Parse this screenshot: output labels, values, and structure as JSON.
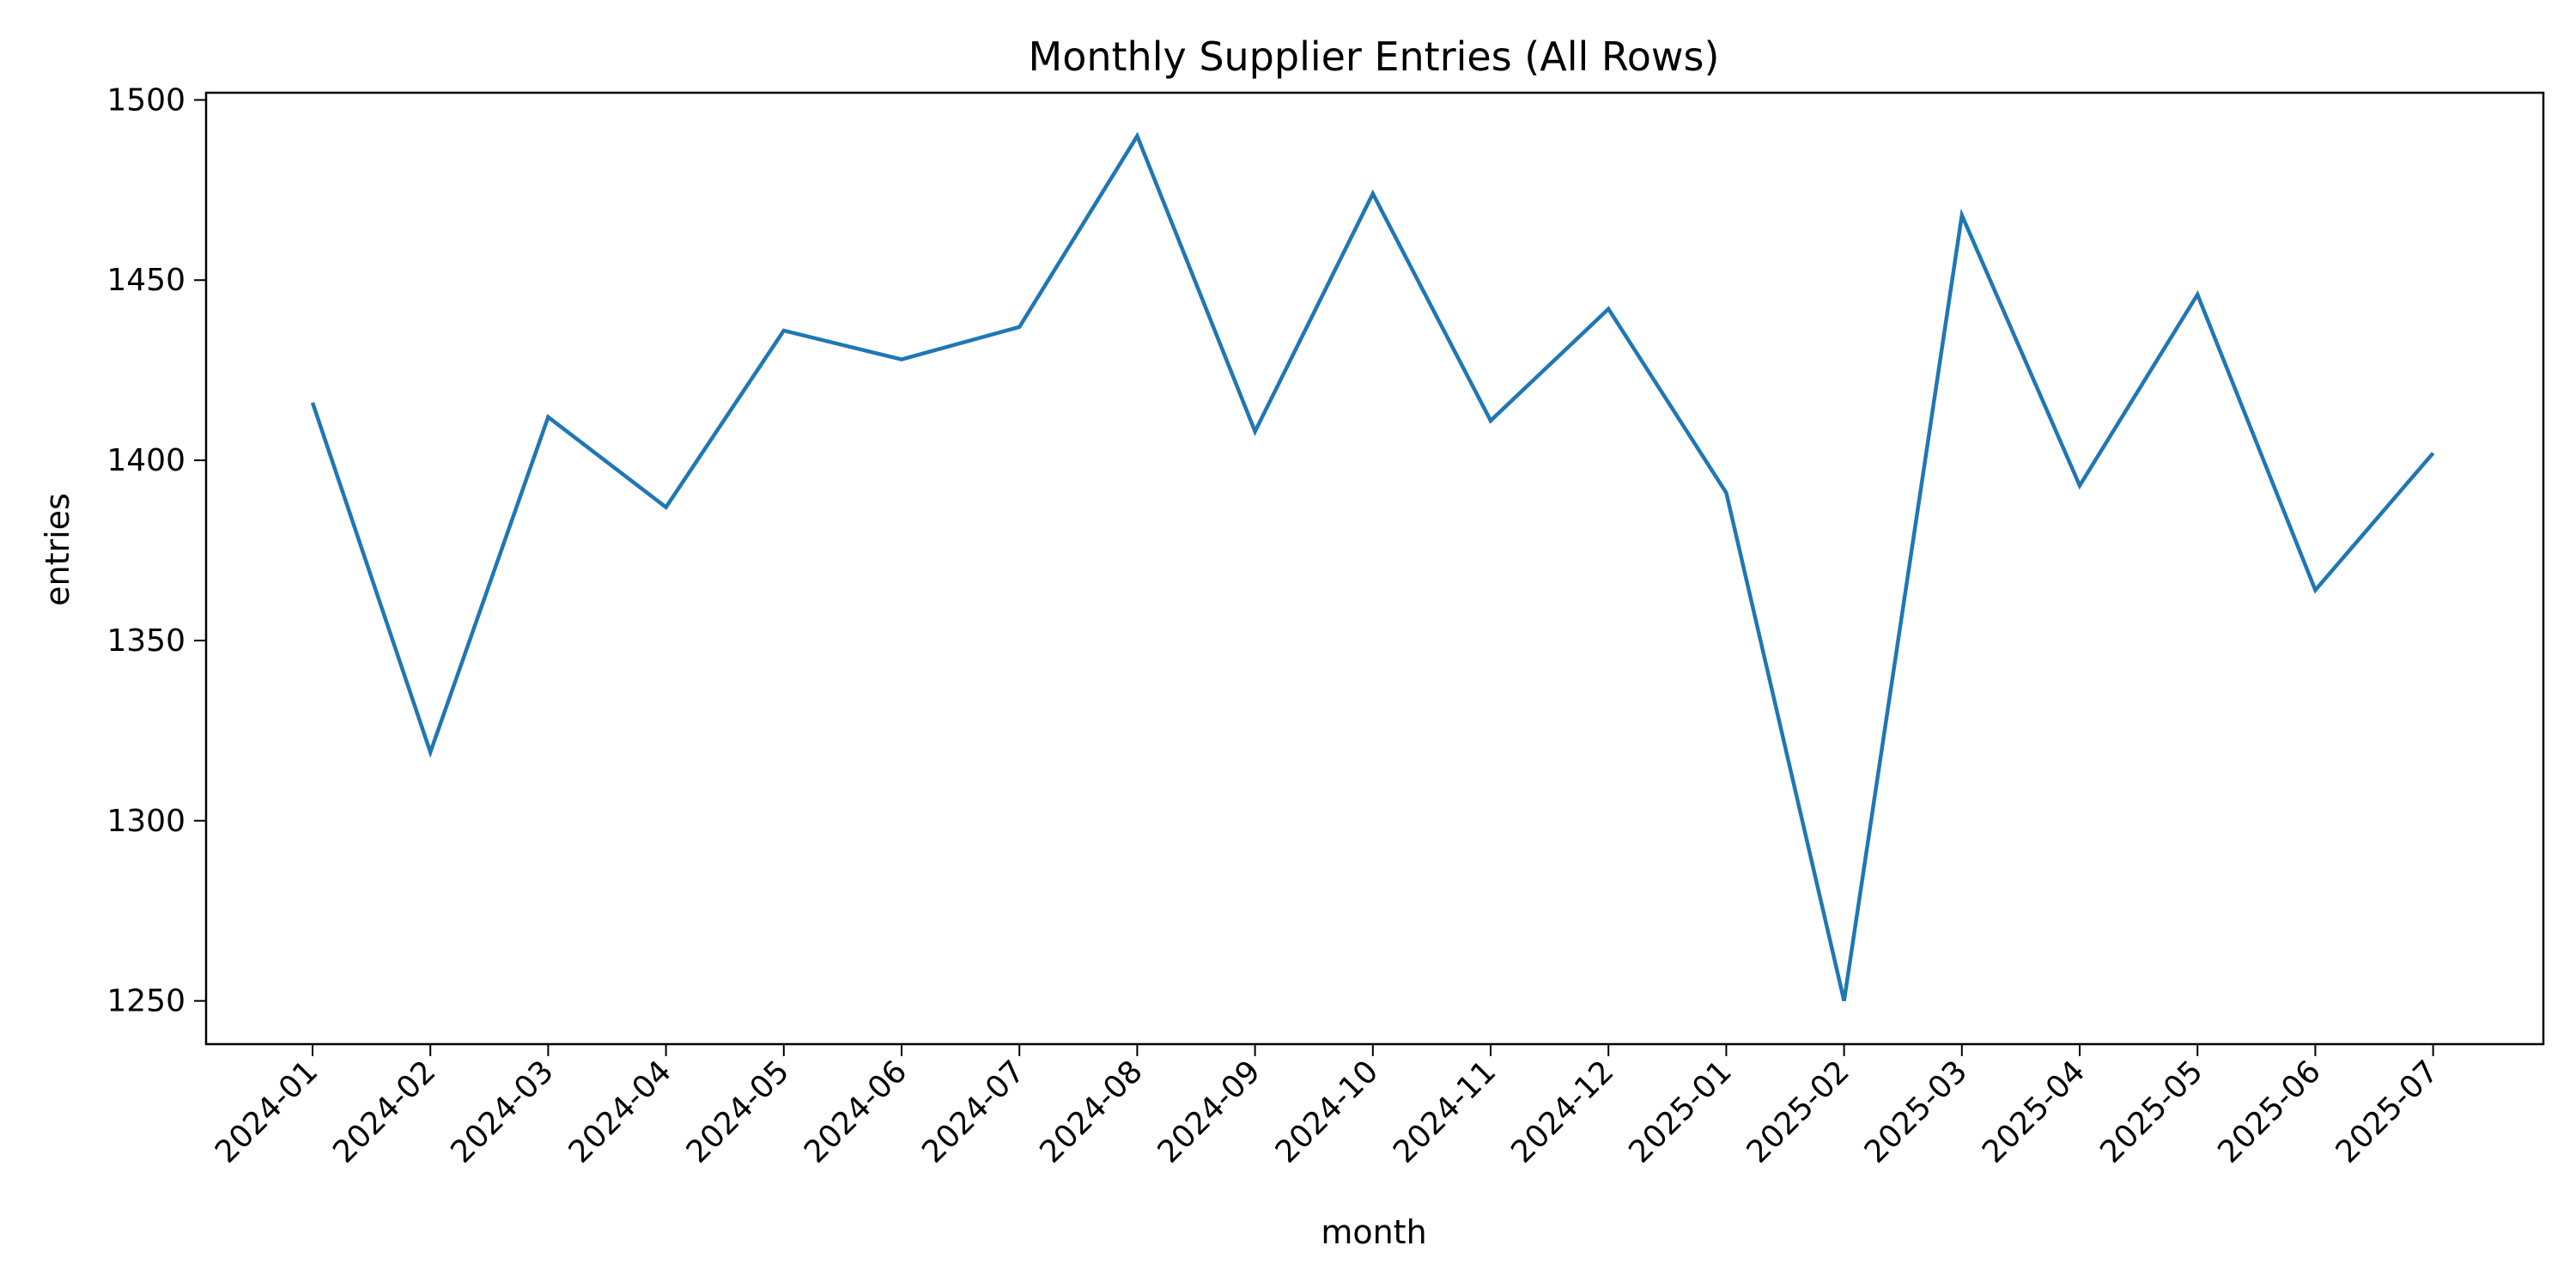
{
  "chart_data": {
    "type": "line",
    "title": "Monthly Supplier Entries (All Rows)",
    "xlabel": "month",
    "ylabel": "entries",
    "categories": [
      "2024-01",
      "2024-02",
      "2024-03",
      "2024-04",
      "2024-05",
      "2024-06",
      "2024-07",
      "2024-08",
      "2024-09",
      "2024-10",
      "2024-11",
      "2024-12",
      "2025-01",
      "2025-02",
      "2025-03",
      "2025-04",
      "2025-05",
      "2025-06",
      "2025-07"
    ],
    "series": [
      {
        "values": [
          1416,
          1319,
          1412,
          1387,
          1436,
          1428,
          1437,
          1490,
          1408,
          1474,
          1411,
          1442,
          1391,
          1250,
          1468,
          1393,
          1446,
          1364,
          1402
        ]
      }
    ],
    "ylim": [
      1238,
      1502
    ],
    "yticks": [
      1250,
      1300,
      1350,
      1400,
      1450,
      1500
    ],
    "grid": false,
    "legend": "none",
    "colors": {
      "line": "#1f77b4",
      "axes": "#000000"
    }
  }
}
